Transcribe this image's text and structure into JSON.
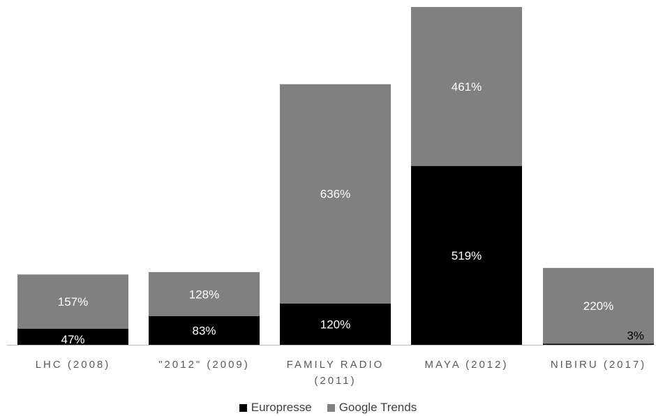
{
  "colors": {
    "europresse": "#000000",
    "google_trends": "#808080",
    "axis": "#bfbfbf",
    "label_on_dark": "#ffffff",
    "label_on_light": "#000000"
  },
  "chart_data": {
    "type": "bar",
    "stacked": true,
    "categories": [
      [
        "LHC (2008)"
      ],
      [
        "\"2012\" (2009)"
      ],
      [
        "FAMILY RADIO",
        "(2011)"
      ],
      [
        "MAYA (2012)"
      ],
      [
        "NIBIRU (2017)"
      ]
    ],
    "series": [
      {
        "name": "Europresse",
        "values": [
          47,
          83,
          120,
          519,
          3
        ],
        "labels": [
          "47%",
          "83%",
          "120%",
          "519%",
          "3%"
        ]
      },
      {
        "name": "Google Trends",
        "values": [
          157,
          128,
          636,
          461,
          220
        ],
        "labels": [
          "157%",
          "128%",
          "636%",
          "461%",
          "220%"
        ]
      }
    ],
    "ylim": [
      0,
      980
    ],
    "grid": false,
    "legend": "bottom"
  }
}
